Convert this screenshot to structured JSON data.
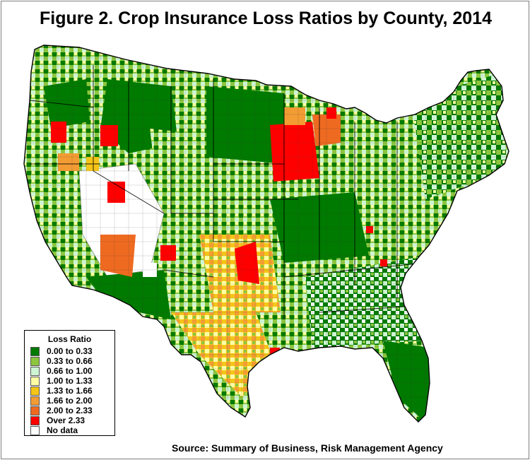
{
  "title": "Figure 2.  Crop Insurance Loss Ratios by County, 2014",
  "source": "Source:  Summary of Business, Risk Management Agency",
  "legend": {
    "title": "Loss Ratio",
    "items": [
      {
        "label": "0.00 to 0.33",
        "color": "#007a00"
      },
      {
        "label": "0.33 to 0.66",
        "color": "#8cc63f"
      },
      {
        "label": "0.66 to 1.00",
        "color": "#cdf5d2"
      },
      {
        "label": "1.00 to 1.33",
        "color": "#ffffa6"
      },
      {
        "label": "1.33 to 1.66",
        "color": "#f5c518"
      },
      {
        "label": "1.66 to 2.00",
        "color": "#f39c33"
      },
      {
        "label": "2.00 to 2.33",
        "color": "#ef6a21"
      },
      {
        "label": "Over 2.33",
        "color": "#ff0000"
      },
      {
        "label": "No data",
        "color": "#ffffff"
      }
    ]
  }
}
